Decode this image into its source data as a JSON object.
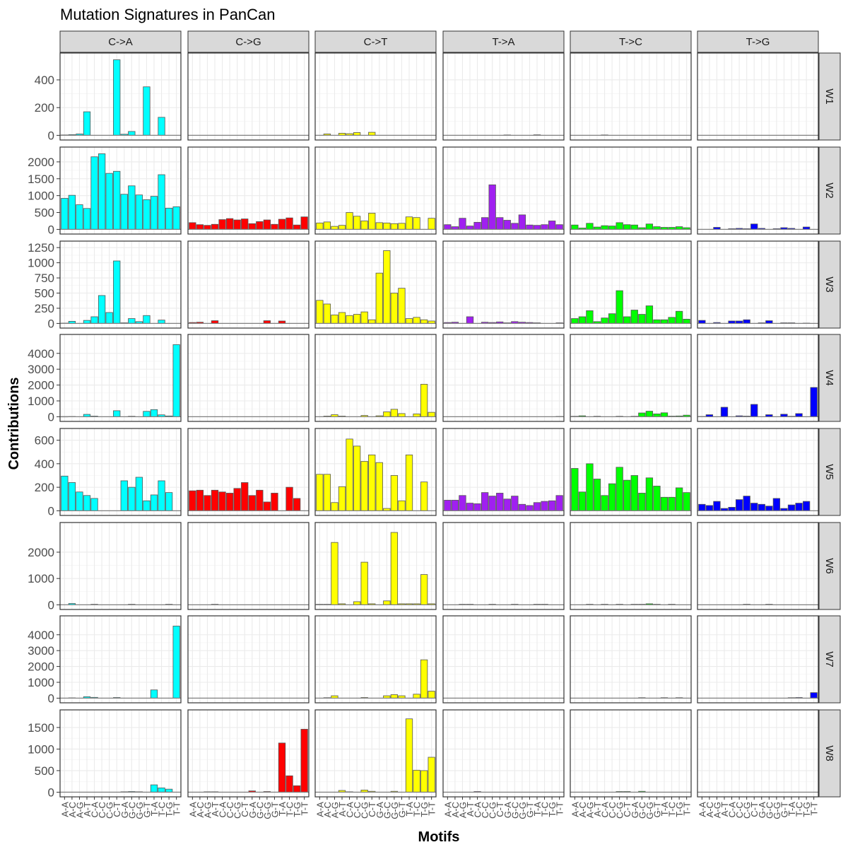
{
  "chart_data": {
    "type": "bar",
    "title": "Mutation Signatures in PanCan",
    "xlabel": "Motifs",
    "ylabel": "Contributions",
    "facet_columns": [
      "C->A",
      "C->G",
      "C->T",
      "T->A",
      "T->C",
      "T->G"
    ],
    "facet_rows": [
      "W1",
      "W2",
      "W3",
      "W4",
      "W5",
      "W6",
      "W7",
      "W8"
    ],
    "motifs": [
      "A-A",
      "A-C",
      "A-G",
      "A-T",
      "C-A",
      "C-C",
      "C-G",
      "C-T",
      "G-A",
      "G-C",
      "G-G",
      "G-T",
      "T-A",
      "T-C",
      "T-G",
      "T-T"
    ],
    "colors": {
      "C->A": "#00ffff",
      "C->G": "#ff0000",
      "C->T": "#ffff00",
      "T->A": "#a020f0",
      "T->C": "#00ff00",
      "T->G": "#0000ff"
    },
    "rows": [
      {
        "name": "W1",
        "ylim": [
          0,
          560
        ],
        "ticks": [
          0,
          200,
          400
        ],
        "values": {
          "C->A": [
            3,
            5,
            10,
            170,
            0,
            0,
            0,
            545,
            8,
            28,
            0,
            350,
            0,
            130,
            0,
            0
          ],
          "C->G": [
            0,
            0,
            0,
            0,
            0,
            0,
            0,
            0,
            0,
            0,
            0,
            0,
            0,
            0,
            0,
            0
          ],
          "C->T": [
            0,
            10,
            0,
            15,
            12,
            20,
            0,
            22,
            0,
            0,
            0,
            0,
            0,
            0,
            0,
            0
          ],
          "T->A": [
            0,
            0,
            0,
            0,
            0,
            0,
            0,
            0,
            3,
            0,
            0,
            0,
            4,
            0,
            0,
            0
          ],
          "T->C": [
            0,
            0,
            0,
            0,
            3,
            0,
            0,
            0,
            0,
            0,
            0,
            0,
            0,
            0,
            0,
            0
          ],
          "T->G": [
            0,
            0,
            0,
            0,
            0,
            0,
            0,
            0,
            0,
            0,
            0,
            0,
            0,
            0,
            0,
            0
          ]
        }
      },
      {
        "name": "W2",
        "ylim": [
          0,
          2300
        ],
        "ticks": [
          0,
          500,
          1000,
          1500,
          2000
        ],
        "values": {
          "C->A": [
            920,
            1010,
            730,
            620,
            2150,
            2240,
            1660,
            1720,
            1040,
            1290,
            1020,
            880,
            980,
            1620,
            630,
            670
          ],
          "C->G": [
            200,
            140,
            120,
            150,
            290,
            320,
            280,
            310,
            170,
            230,
            280,
            150,
            300,
            340,
            130,
            370
          ],
          "C->T": [
            190,
            220,
            90,
            120,
            500,
            390,
            250,
            480,
            200,
            190,
            170,
            180,
            370,
            350,
            0,
            330
          ],
          "T->A": [
            140,
            80,
            330,
            100,
            210,
            350,
            1320,
            350,
            270,
            180,
            430,
            130,
            120,
            140,
            250,
            140
          ],
          "T->C": [
            130,
            40,
            180,
            70,
            110,
            100,
            200,
            140,
            130,
            50,
            160,
            80,
            60,
            60,
            80,
            50
          ],
          "T->G": [
            0,
            0,
            60,
            0,
            20,
            30,
            20,
            160,
            30,
            0,
            20,
            50,
            30,
            0,
            70,
            0
          ]
        }
      },
      {
        "name": "W3",
        "ylim": [
          0,
          1280
        ],
        "ticks": [
          0,
          250,
          500,
          750,
          1000,
          1250
        ],
        "values": {
          "C->A": [
            5,
            35,
            0,
            50,
            110,
            460,
            180,
            1030,
            10,
            80,
            30,
            130,
            0,
            55,
            0,
            0
          ],
          "C->G": [
            15,
            20,
            0,
            45,
            0,
            0,
            0,
            0,
            0,
            0,
            45,
            0,
            40,
            0,
            0,
            0
          ],
          "C->T": [
            380,
            320,
            140,
            180,
            130,
            150,
            190,
            60,
            830,
            1200,
            500,
            580,
            80,
            100,
            60,
            40
          ],
          "T->A": [
            15,
            20,
            0,
            110,
            0,
            20,
            15,
            25,
            10,
            30,
            20,
            15,
            10,
            0,
            0,
            10
          ],
          "T->C": [
            80,
            110,
            210,
            30,
            90,
            160,
            540,
            110,
            220,
            150,
            290,
            60,
            60,
            100,
            200,
            70
          ],
          "T->G": [
            50,
            0,
            15,
            0,
            40,
            40,
            60,
            0,
            10,
            45,
            0,
            10,
            10,
            0,
            5,
            0
          ]
        }
      },
      {
        "name": "W4",
        "ylim": [
          0,
          4900
        ],
        "ticks": [
          0,
          1000,
          2000,
          3000,
          4000
        ],
        "values": {
          "C->A": [
            10,
            15,
            0,
            150,
            40,
            0,
            0,
            380,
            0,
            30,
            0,
            340,
            450,
            120,
            50,
            4550
          ],
          "C->G": [
            0,
            0,
            0,
            0,
            0,
            0,
            0,
            0,
            0,
            0,
            0,
            0,
            0,
            0,
            0,
            0
          ],
          "C->T": [
            0,
            40,
            130,
            40,
            0,
            0,
            80,
            0,
            60,
            310,
            470,
            200,
            0,
            180,
            2050,
            280
          ],
          "T->A": [
            0,
            0,
            0,
            0,
            0,
            0,
            0,
            0,
            0,
            0,
            0,
            0,
            0,
            0,
            0,
            20
          ],
          "T->C": [
            30,
            60,
            0,
            30,
            0,
            0,
            30,
            0,
            30,
            240,
            350,
            180,
            250,
            40,
            50,
            100
          ],
          "T->G": [
            20,
            130,
            0,
            600,
            0,
            60,
            40,
            780,
            0,
            130,
            0,
            160,
            30,
            200,
            0,
            1850
          ]
        }
      },
      {
        "name": "W5",
        "ylim": [
          0,
          660
        ],
        "ticks": [
          0,
          200,
          400,
          600
        ],
        "values": {
          "C->A": [
            295,
            240,
            160,
            130,
            105,
            0,
            0,
            0,
            255,
            200,
            285,
            85,
            135,
            255,
            155,
            0
          ],
          "C->G": [
            170,
            175,
            130,
            175,
            160,
            150,
            190,
            240,
            130,
            175,
            75,
            150,
            0,
            200,
            105,
            0
          ],
          "C->T": [
            310,
            310,
            70,
            205,
            610,
            550,
            420,
            475,
            410,
            20,
            300,
            85,
            475,
            0,
            245,
            0
          ],
          "T->A": [
            90,
            90,
            130,
            65,
            60,
            155,
            125,
            150,
            100,
            125,
            55,
            45,
            70,
            80,
            85,
            130
          ],
          "T->C": [
            360,
            160,
            400,
            270,
            130,
            230,
            370,
            260,
            300,
            150,
            280,
            210,
            115,
            115,
            195,
            155
          ],
          "T->G": [
            55,
            45,
            80,
            20,
            30,
            95,
            125,
            65,
            55,
            40,
            105,
            20,
            50,
            65,
            80,
            0
          ]
        }
      },
      {
        "name": "W6",
        "ylim": [
          0,
          2950
        ],
        "ticks": [
          0,
          1000,
          2000
        ],
        "values": {
          "C->A": [
            0,
            50,
            0,
            0,
            20,
            0,
            0,
            0,
            0,
            20,
            0,
            0,
            0,
            0,
            20,
            0
          ],
          "C->G": [
            0,
            0,
            0,
            20,
            0,
            0,
            0,
            0,
            0,
            0,
            0,
            0,
            0,
            0,
            0,
            0
          ],
          "C->T": [
            20,
            20,
            2370,
            40,
            0,
            120,
            1620,
            40,
            0,
            150,
            2750,
            40,
            40,
            40,
            1150,
            40
          ],
          "T->A": [
            0,
            0,
            20,
            20,
            0,
            0,
            20,
            0,
            0,
            20,
            0,
            0,
            20,
            20,
            0,
            0
          ],
          "T->C": [
            0,
            0,
            20,
            0,
            20,
            0,
            20,
            0,
            20,
            20,
            40,
            20,
            0,
            20,
            0,
            0
          ],
          "T->G": [
            0,
            0,
            0,
            0,
            0,
            0,
            20,
            0,
            0,
            20,
            0,
            0,
            0,
            0,
            0,
            0
          ]
        }
      },
      {
        "name": "W7",
        "ylim": [
          0,
          4900
        ],
        "ticks": [
          0,
          1000,
          2000,
          3000,
          4000
        ],
        "values": {
          "C->A": [
            0,
            20,
            0,
            90,
            50,
            0,
            0,
            40,
            0,
            0,
            0,
            0,
            520,
            0,
            0,
            4550
          ],
          "C->G": [
            0,
            0,
            0,
            0,
            0,
            0,
            0,
            0,
            0,
            0,
            0,
            0,
            0,
            0,
            0,
            0
          ],
          "C->T": [
            0,
            30,
            150,
            0,
            0,
            0,
            40,
            0,
            0,
            150,
            220,
            150,
            0,
            250,
            2420,
            440
          ],
          "T->A": [
            0,
            0,
            0,
            0,
            0,
            0,
            0,
            0,
            0,
            0,
            0,
            0,
            0,
            0,
            0,
            0
          ],
          "T->C": [
            0,
            0,
            0,
            0,
            0,
            0,
            0,
            0,
            0,
            30,
            0,
            0,
            30,
            0,
            30,
            0
          ],
          "T->G": [
            0,
            0,
            0,
            0,
            0,
            0,
            0,
            0,
            0,
            0,
            0,
            0,
            30,
            40,
            0,
            350
          ]
        }
      },
      {
        "name": "W8",
        "ylim": [
          0,
          1800
        ],
        "ticks": [
          0,
          500,
          1000,
          1500
        ],
        "values": {
          "C->A": [
            0,
            0,
            0,
            0,
            0,
            0,
            0,
            0,
            10,
            15,
            10,
            0,
            170,
            100,
            70,
            0
          ],
          "C->G": [
            0,
            0,
            10,
            10,
            0,
            0,
            0,
            0,
            30,
            0,
            15,
            0,
            1140,
            380,
            150,
            1460
          ],
          "C->T": [
            0,
            0,
            0,
            40,
            10,
            0,
            50,
            20,
            0,
            0,
            20,
            0,
            1700,
            510,
            500,
            810
          ],
          "T->A": [
            0,
            0,
            0,
            0,
            15,
            0,
            0,
            0,
            0,
            0,
            0,
            0,
            0,
            0,
            0,
            0
          ],
          "T->C": [
            0,
            0,
            0,
            0,
            0,
            0,
            15,
            15,
            0,
            20,
            0,
            0,
            0,
            0,
            0,
            0
          ],
          "T->G": [
            0,
            0,
            0,
            0,
            0,
            0,
            0,
            0,
            0,
            0,
            0,
            0,
            0,
            0,
            0,
            0
          ]
        }
      }
    ]
  }
}
